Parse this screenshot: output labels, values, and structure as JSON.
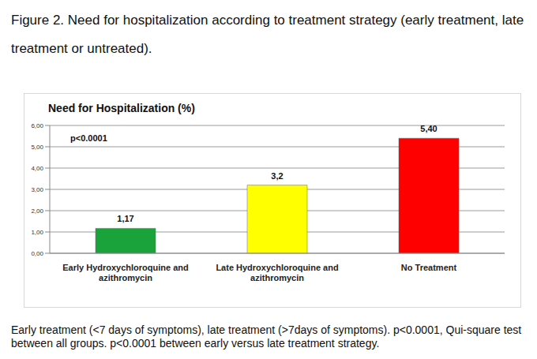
{
  "caption": "Figure 2. Need for hospitalization according to treatment strategy (early treatment, late treatment or untreated).",
  "footnote": "Early treatment (<7 days of symptoms), late treatment (>7days of symptoms). p<0.0001, Qui-square test between all groups. p<0.0001 between early versus late treatment strategy.",
  "chart_data": {
    "type": "bar",
    "title": "Need for Hospitalization (%)",
    "annotations": [
      "p<0.0001"
    ],
    "categories": [
      "Early Hydroxychloroquine and azithromycin",
      "Late Hydroxychloroquine and azithromycin",
      "No Treatment"
    ],
    "values": [
      1.17,
      3.2,
      5.4
    ],
    "value_labels": [
      "1,17",
      "3,2",
      "5,40"
    ],
    "data_labels": true,
    "colors": [
      "#1aa33a",
      "#ffff00",
      "#ff0000"
    ],
    "ylim": [
      0,
      6
    ],
    "yticks": [
      {
        "value": 0,
        "label": "0,00"
      },
      {
        "value": 1,
        "label": "1,00"
      },
      {
        "value": 2,
        "label": "2,00"
      },
      {
        "value": 3,
        "label": "3,00"
      },
      {
        "value": 4,
        "label": "4,00"
      },
      {
        "value": 5,
        "label": "5,00"
      },
      {
        "value": 6,
        "label": "6,00"
      }
    ],
    "grid": true
  }
}
